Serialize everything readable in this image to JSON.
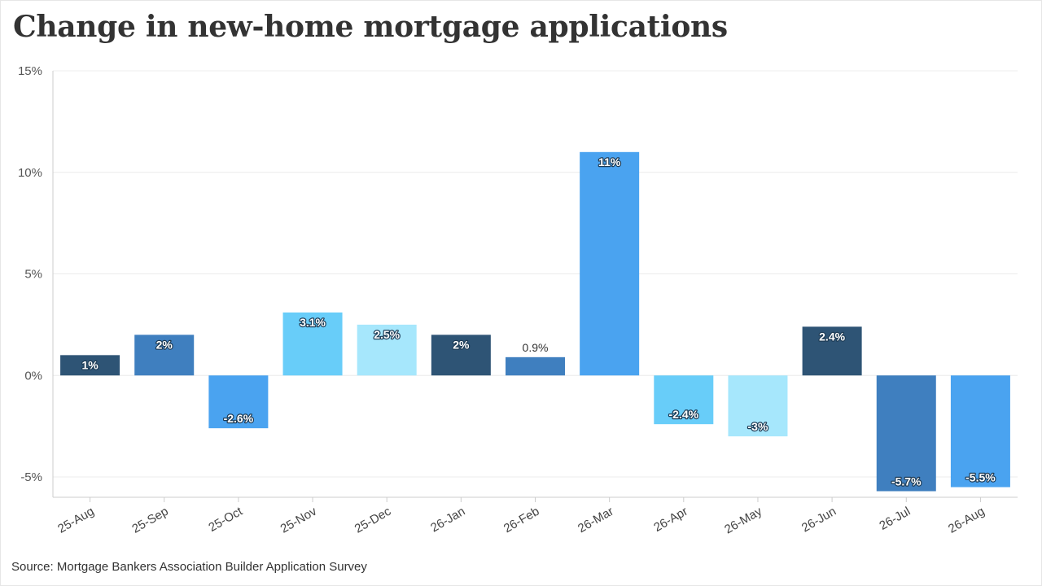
{
  "title": "Change in new-home mortgage applications",
  "source": "Source: Mortgage Bankers Association Builder Application Survey",
  "chart_data": {
    "type": "bar",
    "title": "Change in new-home mortgage applications",
    "xlabel": "",
    "ylabel": "",
    "categories": [
      "25-Aug",
      "25-Sep",
      "25-Oct",
      "25-Nov",
      "25-Dec",
      "26-Jan",
      "26-Feb",
      "26-Mar",
      "26-Apr",
      "26-May",
      "26-Jun",
      "26-Jul",
      "26-Aug"
    ],
    "values": [
      1,
      2,
      -2.6,
      3.1,
      2.5,
      2,
      0.9,
      11,
      -2.4,
      -3,
      2.4,
      -5.7,
      -5.5
    ],
    "data_labels": [
      "1%",
      "2%",
      "-2.6%",
      "3.1%",
      "2.5%",
      "2%",
      "0.9%",
      "11%",
      "-2.4%",
      "-3%",
      "2.4%",
      "-5.7%",
      "-5.5%"
    ],
    "yticks": [
      -5,
      0,
      5,
      10,
      15
    ],
    "ytick_labels": [
      "-5%",
      "0%",
      "5%",
      "10%",
      "15%"
    ],
    "ylim": [
      -6,
      15
    ],
    "grid": true,
    "legend": "none",
    "colors": [
      "#2e5475",
      "#3f7fbf",
      "#4aa3f0",
      "#68cdf9",
      "#a6e7fc",
      "#2e5475",
      "#3f7fbf",
      "#4aa3f0",
      "#68cdf9",
      "#a6e7fc",
      "#2e5475",
      "#3f7fbf",
      "#4aa3f0"
    ],
    "gridline_color": "#ececec",
    "axis_color": "#cccccc"
  }
}
